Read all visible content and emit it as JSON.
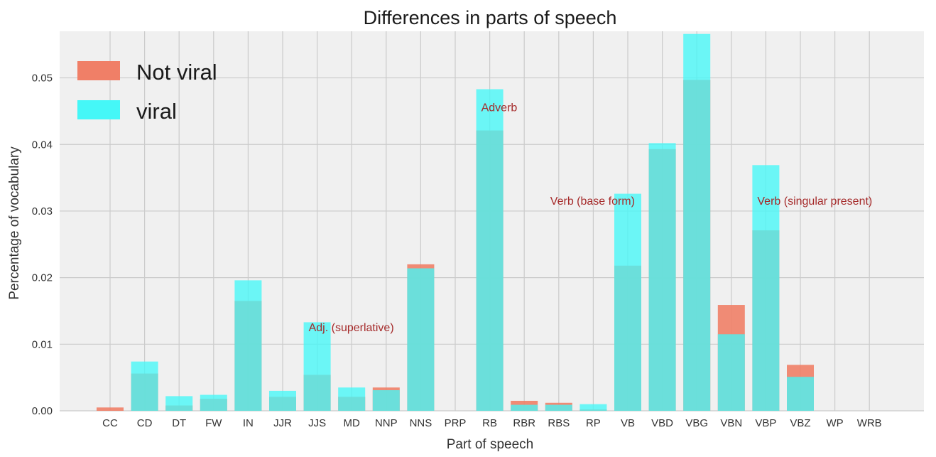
{
  "chart_data": {
    "type": "bar",
    "title": "Differences in parts of speech",
    "xlabel": "Part of speech",
    "ylabel": "Percentage of vocabulary",
    "ylim": [
      0,
      0.057
    ],
    "yticks": [
      "0.00",
      "0.01",
      "0.02",
      "0.03",
      "0.04",
      "0.05"
    ],
    "grid": true,
    "legend_position": "top-left",
    "categories": [
      "CC",
      "CD",
      "DT",
      "FW",
      "IN",
      "JJR",
      "JJS",
      "MD",
      "NNP",
      "NNS",
      "PRP",
      "RB",
      "RBR",
      "RBS",
      "RP",
      "VB",
      "VBD",
      "VBG",
      "VBN",
      "VBP",
      "VBZ",
      "WP",
      "WRB"
    ],
    "series": [
      {
        "name": "Not viral",
        "color": "#f07f67",
        "values": [
          0.0005,
          0.0056,
          0.0008,
          0.0018,
          0.0165,
          0.0021,
          0.0054,
          0.0021,
          0.0035,
          0.022,
          0.0,
          0.0421,
          0.0015,
          0.0012,
          0.0002,
          0.0218,
          0.0393,
          0.0497,
          0.0159,
          0.0271,
          0.0069,
          0.0,
          0.0
        ]
      },
      {
        "name": "viral",
        "color": "#45f7f7",
        "values": [
          0.0,
          0.0074,
          0.0022,
          0.0024,
          0.0196,
          0.003,
          0.0133,
          0.0035,
          0.0031,
          0.0214,
          0.0,
          0.0483,
          0.0009,
          0.0009,
          0.001,
          0.0326,
          0.0402,
          0.0566,
          0.0115,
          0.0369,
          0.0051,
          0.0,
          0.0
        ]
      }
    ],
    "annotations": [
      {
        "text": "Adj. (superlative)",
        "x": "JJS",
        "y": 0.0125
      },
      {
        "text": "Adverb",
        "x": "RB",
        "y": 0.0455
      },
      {
        "text": "Verb (base form)",
        "x": "RBS",
        "y": 0.0315
      },
      {
        "text": "Verb (singular present)",
        "x": "VBP",
        "y": 0.0315
      }
    ]
  }
}
